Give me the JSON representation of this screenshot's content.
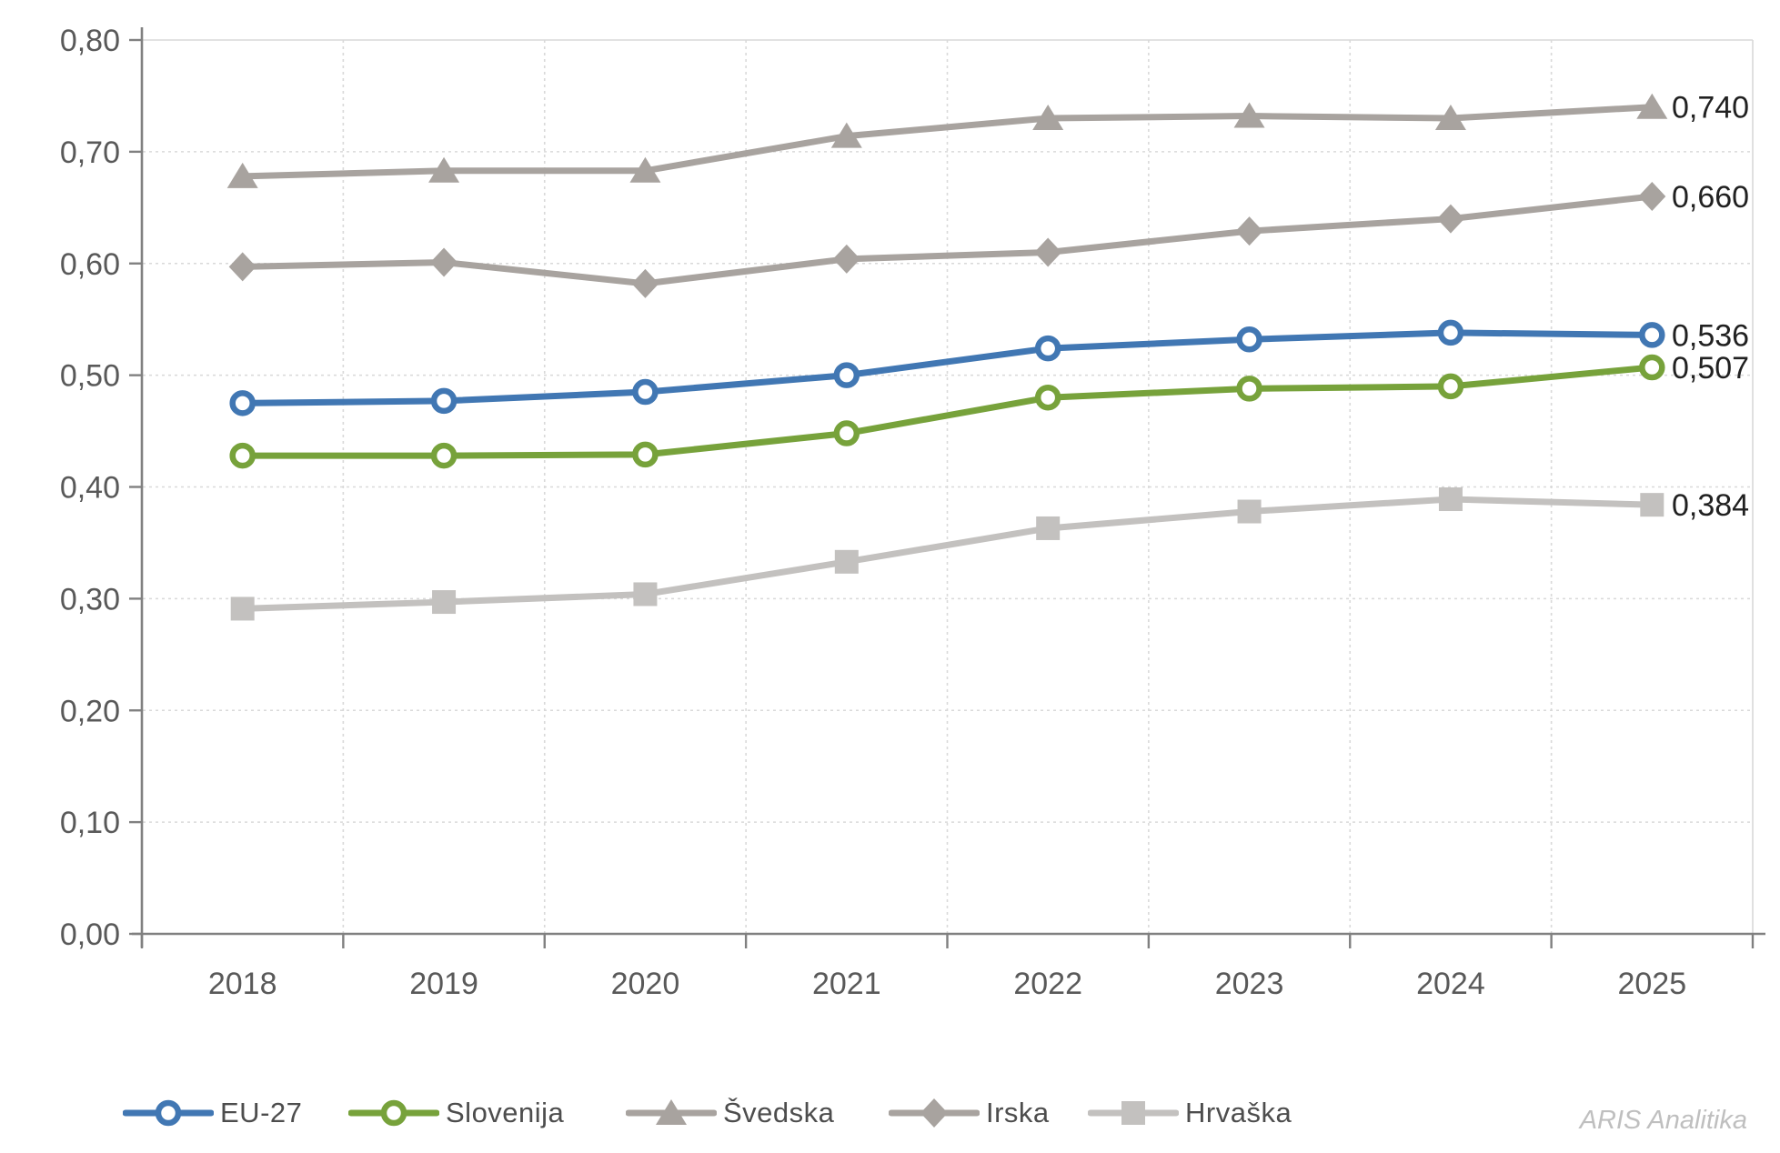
{
  "chart_data": {
    "type": "line",
    "title": "",
    "xlabel": "",
    "ylabel": "",
    "categories": [
      "2018",
      "2019",
      "2020",
      "2021",
      "2022",
      "2023",
      "2024",
      "2025"
    ],
    "series": [
      {
        "name": "EU-27",
        "color": "#4177B3",
        "marker": "circle-open",
        "values": [
          0.475,
          0.477,
          0.485,
          0.5,
          0.524,
          0.532,
          0.538,
          0.536
        ],
        "end_label": "0,536"
      },
      {
        "name": "Slovenija",
        "color": "#77A23B",
        "marker": "circle-open",
        "values": [
          0.428,
          0.428,
          0.429,
          0.448,
          0.48,
          0.488,
          0.49,
          0.507
        ],
        "end_label": "0,507"
      },
      {
        "name": "Švedska",
        "color": "#A8A39F",
        "marker": "triangle",
        "values": [
          0.678,
          0.683,
          0.683,
          0.714,
          0.73,
          0.732,
          0.73,
          0.74
        ],
        "end_label": "0,740"
      },
      {
        "name": "Irska",
        "color": "#A8A39F",
        "marker": "diamond",
        "values": [
          0.597,
          0.601,
          0.582,
          0.604,
          0.61,
          0.629,
          0.64,
          0.66
        ],
        "end_label": "0,660"
      },
      {
        "name": "Hrvaška",
        "color": "#C3C1BF",
        "marker": "square",
        "values": [
          0.291,
          0.297,
          0.304,
          0.333,
          0.363,
          0.378,
          0.389,
          0.384
        ],
        "end_label": "0,384"
      }
    ],
    "ylim": [
      0,
      0.8
    ],
    "y_ticks": [
      0,
      0.1,
      0.2,
      0.3,
      0.4,
      0.5,
      0.6,
      0.7,
      0.8
    ],
    "y_tick_labels": [
      "0,00",
      "0,10",
      "0,20",
      "0,30",
      "0,40",
      "0,50",
      "0,60",
      "0,70",
      "0,80"
    ],
    "decimal_separator": ",",
    "grid": "dashed horizontal at each 0,10; dashed vertical at category boundaries",
    "legend_position": "bottom"
  },
  "legend_labels": [
    "EU-27",
    "Slovenija",
    "Švedska",
    "Irska",
    "Hrvaška"
  ],
  "attribution": "ARIS Analitika",
  "style_colors": {
    "axis": "#808080",
    "gridline": "#D9D9D9",
    "tick_label": "#595959",
    "end_label": "#212121",
    "legend_text": "#4d4d4d",
    "attribution_text": "#BFBFBF"
  }
}
